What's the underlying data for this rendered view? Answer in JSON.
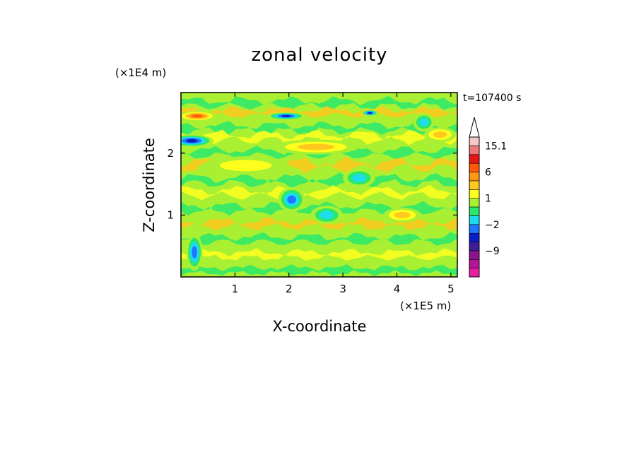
{
  "chart_data": {
    "type": "heatmap",
    "title": "zonal velocity",
    "time_label": "t=107400 s",
    "xlabel": "X-coordinate",
    "ylabel": "Z-coordinate",
    "x_unit": "(×1E5 m)",
    "y_unit": "(×1E4 m)",
    "xlim": [
      0,
      5.12
    ],
    "ylim": [
      0,
      2.98
    ],
    "x_ticks": [
      1,
      2,
      3,
      4,
      5
    ],
    "x_tick_labels": [
      "1",
      "2",
      "3",
      "4",
      "5"
    ],
    "y_ticks": [
      1,
      2
    ],
    "y_tick_labels": [
      "1",
      "2"
    ],
    "colorbar": {
      "levels": [
        -15,
        -12,
        -9,
        -6,
        -4,
        -2,
        -1,
        0,
        1,
        2,
        4,
        6,
        9,
        12,
        15.1
      ],
      "labeled_ticks": [
        {
          "level": 15.1,
          "label": "15.1"
        },
        {
          "level": 6,
          "label": "6"
        },
        {
          "level": 1,
          "label": "1"
        },
        {
          "level": -2,
          "label": "−2"
        },
        {
          "level": -9,
          "label": "−9"
        }
      ],
      "colors": [
        "#e61ea0",
        "#b4149b",
        "#8c148c",
        "#3c1e9b",
        "#0a1ec8",
        "#1e78ff",
        "#1edcf0",
        "#2be86c",
        "#aaf032",
        "#ffff1e",
        "#ffc81e",
        "#ff9614",
        "#ff5a0a",
        "#e61414",
        "#f07878",
        "#f5c8c8"
      ],
      "extend": "max"
    },
    "regions": [
      {
        "x": 0.3,
        "z": 2.6,
        "rx": 0.35,
        "rz": 0.08,
        "u": 7
      },
      {
        "x": 0.2,
        "z": 2.2,
        "rx": 0.4,
        "rz": 0.1,
        "u": -6
      },
      {
        "x": 1.95,
        "z": 2.6,
        "rx": 0.35,
        "rz": 0.06,
        "u": -6
      },
      {
        "x": 3.5,
        "z": 2.65,
        "rx": 0.15,
        "rz": 0.05,
        "u": -5
      },
      {
        "x": 2.05,
        "z": 1.25,
        "rx": 0.25,
        "rz": 0.2,
        "u": -3
      },
      {
        "x": 3.3,
        "z": 1.6,
        "rx": 0.3,
        "rz": 0.15,
        "u": -1.5
      },
      {
        "x": 4.5,
        "z": 2.5,
        "rx": 0.2,
        "rz": 0.15,
        "u": -2
      },
      {
        "x": 4.8,
        "z": 2.3,
        "rx": 0.3,
        "rz": 0.12,
        "u": 3
      },
      {
        "x": 4.1,
        "z": 1.0,
        "rx": 0.35,
        "rz": 0.12,
        "u": 3
      },
      {
        "x": 2.7,
        "z": 1.0,
        "rx": 0.3,
        "rz": 0.15,
        "u": -1.5
      },
      {
        "x": 0.25,
        "z": 0.4,
        "rx": 0.15,
        "rz": 0.3,
        "u": -4
      },
      {
        "x": 2.5,
        "z": 2.1,
        "rx": 0.8,
        "rz": 0.12,
        "u": 2.5
      },
      {
        "x": 1.2,
        "z": 1.8,
        "rx": 0.8,
        "rz": 0.15,
        "u": 1.5
      }
    ]
  }
}
